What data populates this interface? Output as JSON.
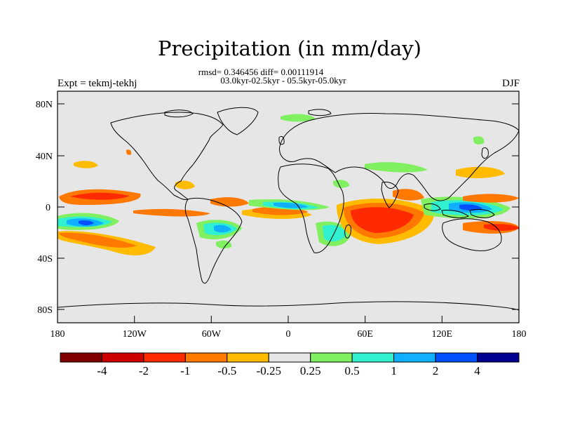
{
  "title": "Precipitation (in mm/day)",
  "stats_line": "rmsd= 0.346456 diff= 0.00111914",
  "period_line": "03.0kyr-02.5kyr - 05.5kyr-05.0kyr",
  "expt_label": "Expt = tekmj-tekhj",
  "season_label": "DJF",
  "map": {
    "lat_ticks": [
      "80N",
      "40N",
      "0",
      "40S",
      "80S"
    ],
    "lon_ticks": [
      "180",
      "120W",
      "60W",
      "0",
      "60E",
      "120E",
      "180"
    ],
    "ocean_color": "#e6e6e6",
    "coast_color": "#000000"
  },
  "colorbar": {
    "colors": [
      "#800000",
      "#cc0000",
      "#ff2a00",
      "#ff7800",
      "#ffbb00",
      "#e6e6e6",
      "#80f060",
      "#30f0d0",
      "#10b0ff",
      "#0050ff",
      "#000090"
    ],
    "labels": [
      "-4",
      "-2",
      "-1",
      "-0.5",
      "-0.25",
      "0.25",
      "0.5",
      "1",
      "2",
      "4"
    ]
  }
}
